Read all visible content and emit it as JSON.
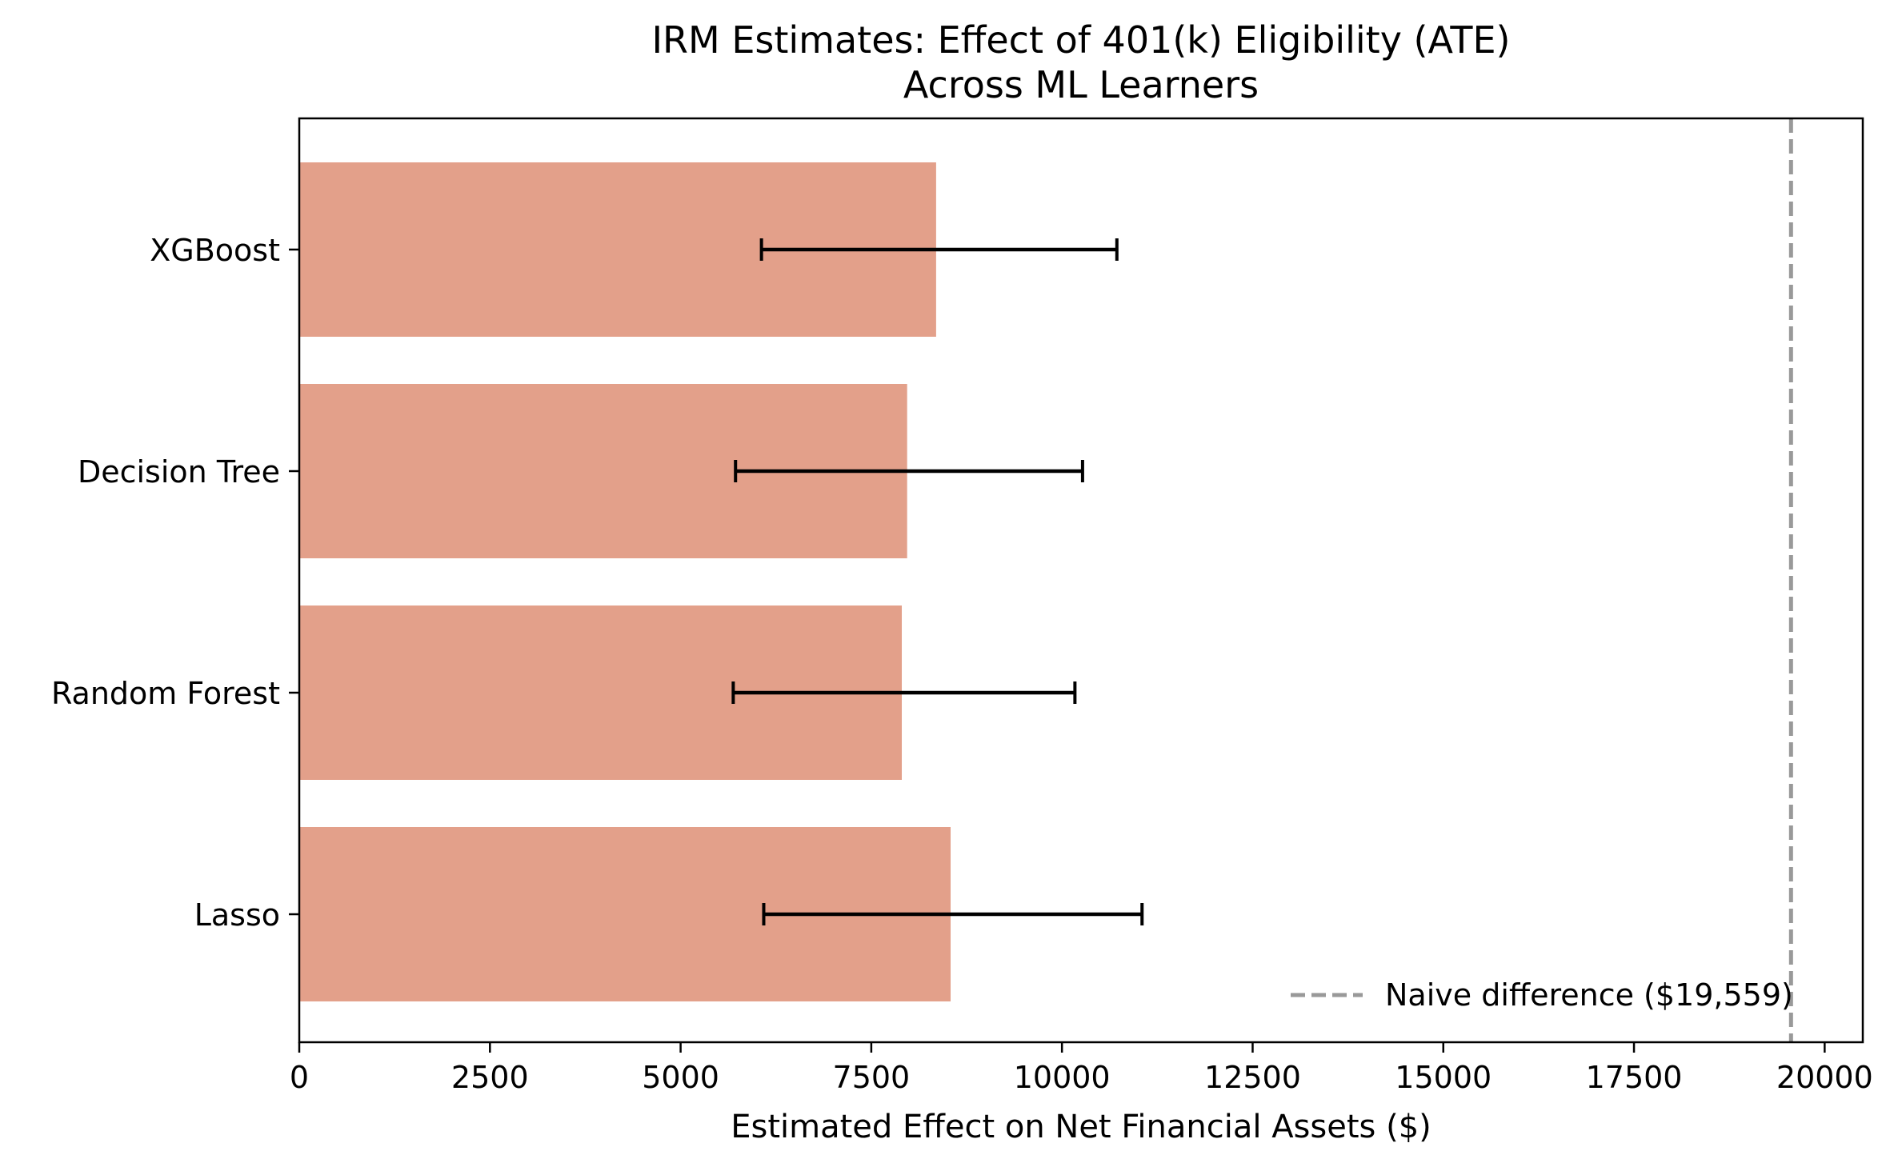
{
  "chart_data": {
    "type": "bar",
    "orientation": "horizontal",
    "title_line1": "IRM Estimates: Effect of 401(k) Eligibility (ATE)",
    "title_line2": "Across ML Learners",
    "xlabel": "Estimated Effect on Net Financial Assets ($)",
    "ylabel": "",
    "xlim": [
      0,
      20500
    ],
    "xticks": [
      "0",
      "2500",
      "5000",
      "7500",
      "10000",
      "12500",
      "15000",
      "17500",
      "20000"
    ],
    "xtick_values": [
      0,
      2500,
      5000,
      7500,
      10000,
      12500,
      15000,
      17500,
      20000
    ],
    "categories": [
      "Lasso",
      "Random Forest",
      "Decision Tree",
      "XGBoost"
    ],
    "values": [
      8540,
      7900,
      7970,
      8350
    ],
    "ci_lower": [
      6090,
      5690,
      5720,
      6060
    ],
    "ci_upper": [
      11050,
      10170,
      10270,
      10720
    ],
    "bar_color": "#e3a08a",
    "reference_line": {
      "value": 19559,
      "color": "#999999",
      "style": "dashed",
      "label": "Naive difference ($19,559)"
    },
    "legend_position": "lower-right",
    "grid": false
  }
}
